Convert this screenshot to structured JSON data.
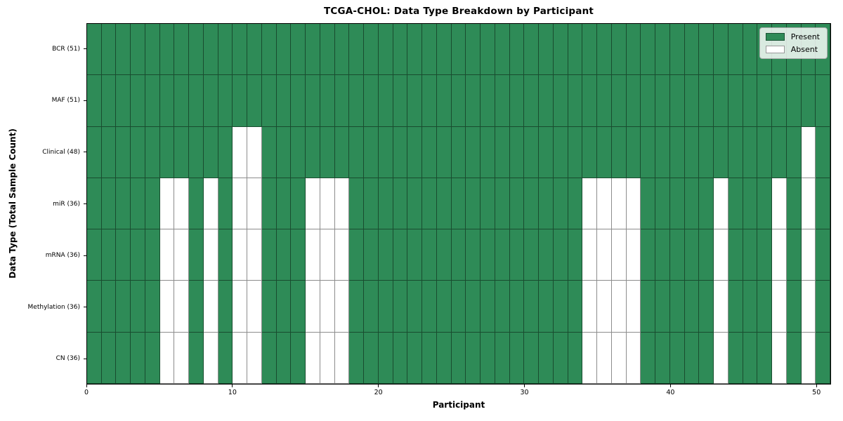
{
  "chart_data": {
    "type": "heatmap",
    "title": "TCGA-CHOL: Data Type Breakdown by Participant",
    "xlabel": "Participant",
    "ylabel": "Data Type (Total Sample Count)",
    "x_ticks": [
      0,
      10,
      20,
      30,
      40,
      50
    ],
    "x_range": [
      0,
      51
    ],
    "n_participants": 51,
    "grid": true,
    "rows": [
      {
        "label": "BCR (51)",
        "present_count": 51,
        "absent_participants": []
      },
      {
        "label": "MAF (51)",
        "present_count": 51,
        "absent_participants": []
      },
      {
        "label": "Clinical (48)",
        "present_count": 48,
        "absent_participants": [
          10,
          11,
          49
        ]
      },
      {
        "label": "miR (36)",
        "present_count": 36,
        "absent_participants": [
          5,
          6,
          8,
          10,
          11,
          15,
          16,
          17,
          34,
          35,
          36,
          37,
          43,
          47,
          49
        ]
      },
      {
        "label": "mRNA (36)",
        "present_count": 36,
        "absent_participants": [
          5,
          6,
          8,
          10,
          11,
          15,
          16,
          17,
          34,
          35,
          36,
          37,
          43,
          47,
          49
        ]
      },
      {
        "label": "Methylation (36)",
        "present_count": 36,
        "absent_participants": [
          5,
          6,
          8,
          10,
          11,
          15,
          16,
          17,
          34,
          35,
          36,
          37,
          43,
          47,
          49
        ]
      },
      {
        "label": "CN (36)",
        "present_count": 36,
        "absent_participants": [
          5,
          6,
          8,
          10,
          11,
          15,
          16,
          17,
          34,
          35,
          36,
          37,
          43,
          47,
          49
        ]
      }
    ],
    "legend": {
      "position": "upper-right",
      "items": [
        {
          "label": "Present",
          "color": "#2e8b57"
        },
        {
          "label": "Absent",
          "color": "#ffffff"
        }
      ]
    },
    "colors": {
      "present": "#2e8b57",
      "absent": "#ffffff",
      "cell_edge": "rgba(0,0,0,0.45)",
      "spine": "#000000",
      "legend_border": "#adadad"
    }
  }
}
